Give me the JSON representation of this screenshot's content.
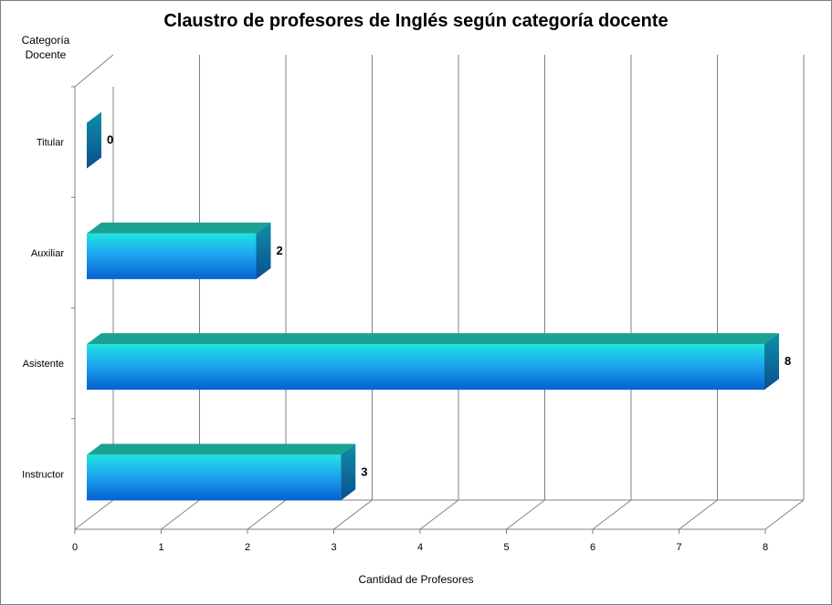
{
  "chart_data": {
    "type": "bar",
    "orientation": "horizontal",
    "title": "Claustro de profesores de Inglés según categoría docente",
    "ylabel": "Categoría Docente",
    "xlabel": "Cantidad de Profesores",
    "categories": [
      "Instructor",
      "Asistente",
      "Auxiliar",
      "Titular"
    ],
    "values": [
      3,
      8,
      2,
      0
    ],
    "data_labels": [
      "3",
      "8",
      "2",
      "0"
    ],
    "x_ticks": [
      "0",
      "1",
      "2",
      "3",
      "4",
      "5",
      "6",
      "7",
      "8"
    ],
    "xlim": [
      0,
      8
    ],
    "grid": true,
    "legend": "none",
    "colors": {
      "bar_top": "#1aa390",
      "bar_front_light": "#1fe4e0",
      "bar_front_mid": "#1ea6f0",
      "bar_front_dark": "#0560d0",
      "bar_side": "#0a6fa0",
      "grid": "#808080"
    }
  }
}
